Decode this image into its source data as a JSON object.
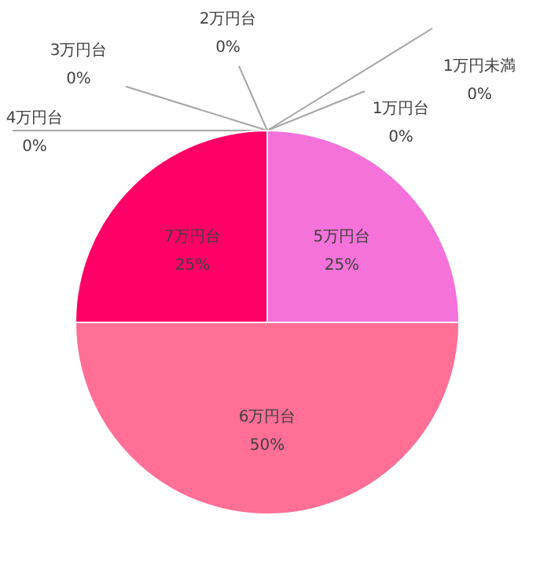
{
  "chart_data": {
    "type": "pie",
    "categories": [
      "1万円未満",
      "1万円台",
      "2万円台",
      "3万円台",
      "4万円台",
      "5万円台",
      "6万円台",
      "7万円台"
    ],
    "values": [
      0,
      0,
      0,
      0,
      0,
      25,
      50,
      25
    ],
    "value_labels": [
      "0%",
      "0%",
      "0%",
      "0%",
      "0%",
      "25%",
      "50%",
      "25%"
    ],
    "colors": [
      "#a6a6a6",
      "#a6a6a6",
      "#a6a6a6",
      "#a6a6a6",
      "#a6a6a6",
      "#f472d9",
      "#ff6f96",
      "#ff0066"
    ]
  }
}
